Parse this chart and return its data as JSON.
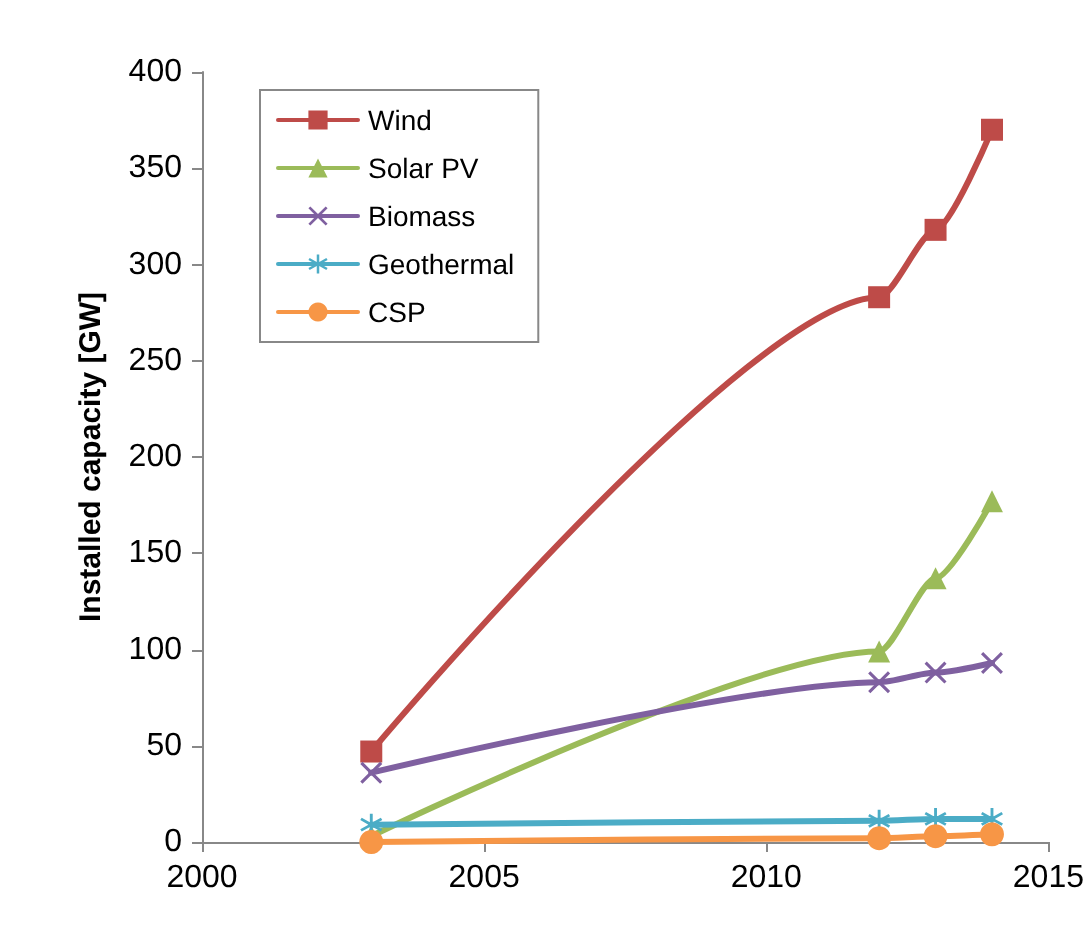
{
  "chart_data": {
    "type": "line",
    "ylabel": "Installed capacity [GW]",
    "x": [
      2003,
      2012,
      2013,
      2014
    ],
    "series": [
      {
        "name": "Wind",
        "color": "#be4b48",
        "marker": "square",
        "values": [
          47,
          283,
          318,
          370
        ]
      },
      {
        "name": "Solar PV",
        "color": "#9bbb59",
        "marker": "triangle",
        "values": [
          3,
          99,
          137,
          177
        ]
      },
      {
        "name": "Biomass",
        "color": "#7f60a0",
        "marker": "cross",
        "values": [
          36,
          83,
          88,
          93
        ]
      },
      {
        "name": "Geothermal",
        "color": "#4bacc6",
        "marker": "star",
        "values": [
          9,
          11,
          12,
          12
        ]
      },
      {
        "name": "CSP",
        "color": "#f79646",
        "marker": "circle",
        "values": [
          0,
          2,
          3,
          4
        ]
      }
    ],
    "xlim": [
      2000,
      2015
    ],
    "xticks": [
      2000,
      2005,
      2010,
      2015
    ],
    "ylim": [
      0,
      400
    ],
    "yticks": [
      0,
      50,
      100,
      150,
      200,
      250,
      300,
      350,
      400
    ],
    "grid": false,
    "legend": "top left",
    "line_style": "solid"
  }
}
